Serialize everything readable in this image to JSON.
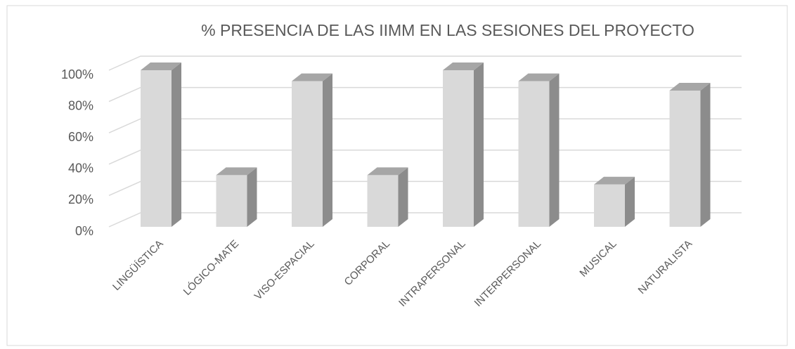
{
  "chart_data": {
    "type": "bar3d",
    "title": "% PRESENCIA DE LAS IIMM EN LAS SESIONES DEL PROYECTO",
    "categories": [
      "LINGÜÍSTICA",
      "LÓGICO-MATE",
      "VISO-ESPACIAL",
      "CORPORAL",
      "INTRAPERSONAL",
      "INTERPERSONAL",
      "MUSICAL",
      "NATURALISTA"
    ],
    "values": [
      100,
      33,
      93,
      33,
      100,
      93,
      27,
      87
    ],
    "color": "#d9d9d9",
    "ylim": [
      0,
      100
    ],
    "yticks": [
      {
        "value": 0,
        "label": "0%"
      },
      {
        "value": 20,
        "label": "20%"
      },
      {
        "value": 40,
        "label": "40%"
      },
      {
        "value": 60,
        "label": "60%"
      },
      {
        "value": 80,
        "label": "80%"
      },
      {
        "value": 100,
        "label": "100%"
      }
    ],
    "grid": true
  }
}
